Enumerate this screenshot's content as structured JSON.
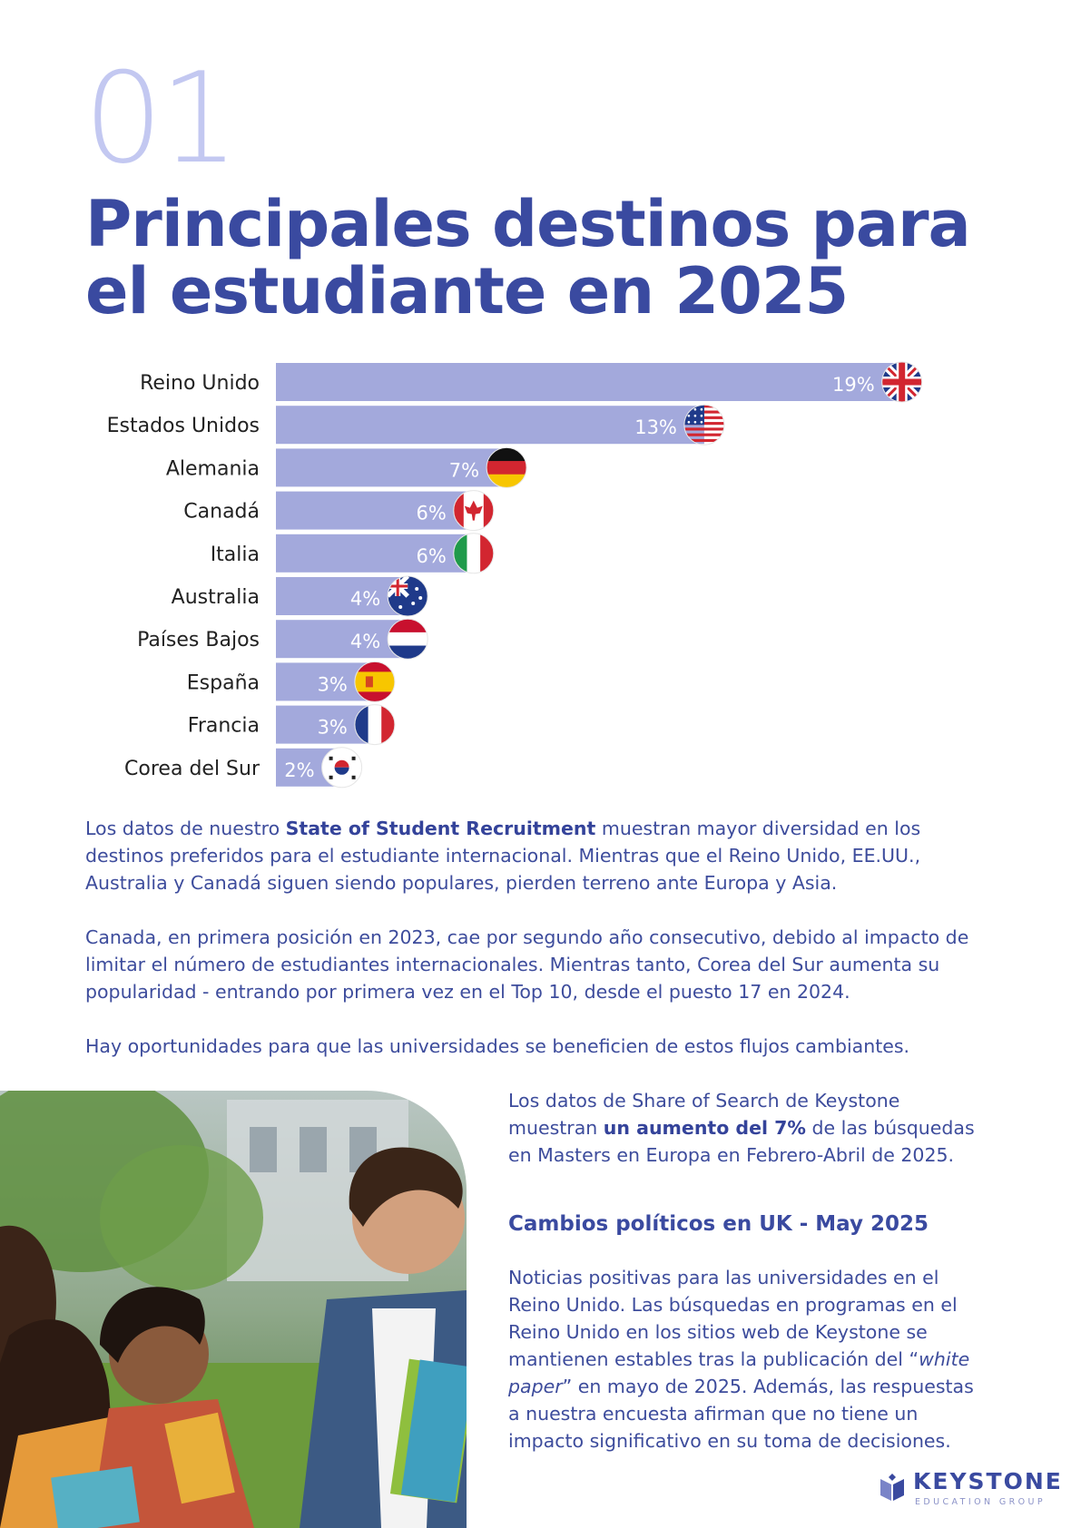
{
  "header": {
    "section_number": "01",
    "title_line1": "Principales destinos para",
    "title_line2": "el estudiante en 2025"
  },
  "chart_data": {
    "type": "bar",
    "orientation": "horizontal",
    "categories": [
      "Reino Unido",
      "Estados Unidos",
      "Alemania",
      "Canadá",
      "Italia",
      "Australia",
      "Países Bajos",
      "España",
      "Francia",
      "Corea del Sur"
    ],
    "values": [
      19,
      13,
      7,
      6,
      6,
      4,
      4,
      3,
      3,
      2
    ],
    "value_labels": [
      "19%",
      "13%",
      "7%",
      "6%",
      "6%",
      "4%",
      "4%",
      "3%",
      "3%",
      "2%"
    ],
    "flags": [
      "uk-flag-icon",
      "usa-flag-icon",
      "germany-flag-icon",
      "canada-flag-icon",
      "italy-flag-icon",
      "australia-flag-icon",
      "netherlands-flag-icon",
      "spain-flag-icon",
      "france-flag-icon",
      "south-korea-flag-icon"
    ],
    "bar_color": "#a3a9dc"
  },
  "body": {
    "p1_pre": "Los datos de nuestro ",
    "p1_bold": "State of Student Recruitment",
    "p1_post": " muestran mayor diversidad en los destinos preferidos para el estudiante internacional. Mientras que el Reino Unido, EE.UU., Australia y Canadá siguen siendo populares, pierden terreno ante Europa y Asia.",
    "p2": "Canada, en primera posición en 2023, cae por segundo año consecutivo, debido al impacto de limitar el número de estudiantes internacionales. Mientras tanto, Corea del Sur aumenta su popularidad - entrando por primera vez en el Top 10, desde el puesto 17 en 2024.",
    "p3": "Hay oportunidades para que las universidades se beneficien de estos flujos cambiantes."
  },
  "sidebar": {
    "p1_pre": "Los datos de Share of Search de Keystone muestran ",
    "p1_bold": "un aumento del 7%",
    "p1_post": " de las búsquedas en Masters en Europa en Febrero-Abril de 2025.",
    "heading": "Cambios políticos en UK - May 2025",
    "p2_pre": "Noticias positivas para las universidades en el Reino Unido. Las búsquedas en programas en el Reino Unido en los sitios web de Keystone se mantienen estables tras la publicación del “",
    "p2_italic": "white paper",
    "p2_post": "” en mayo de 2025. Además, las respuestas a nuestra encuesta afirman que no tiene un impacto significativo en su toma de decisiones."
  },
  "footer": {
    "logo_word": "KEYSTONE",
    "logo_sub": "EDUCATION GROUP"
  },
  "colors": {
    "title": "#3a4aa0",
    "section_number": "#c3c8f1",
    "body_text": "#3d4c9c"
  }
}
